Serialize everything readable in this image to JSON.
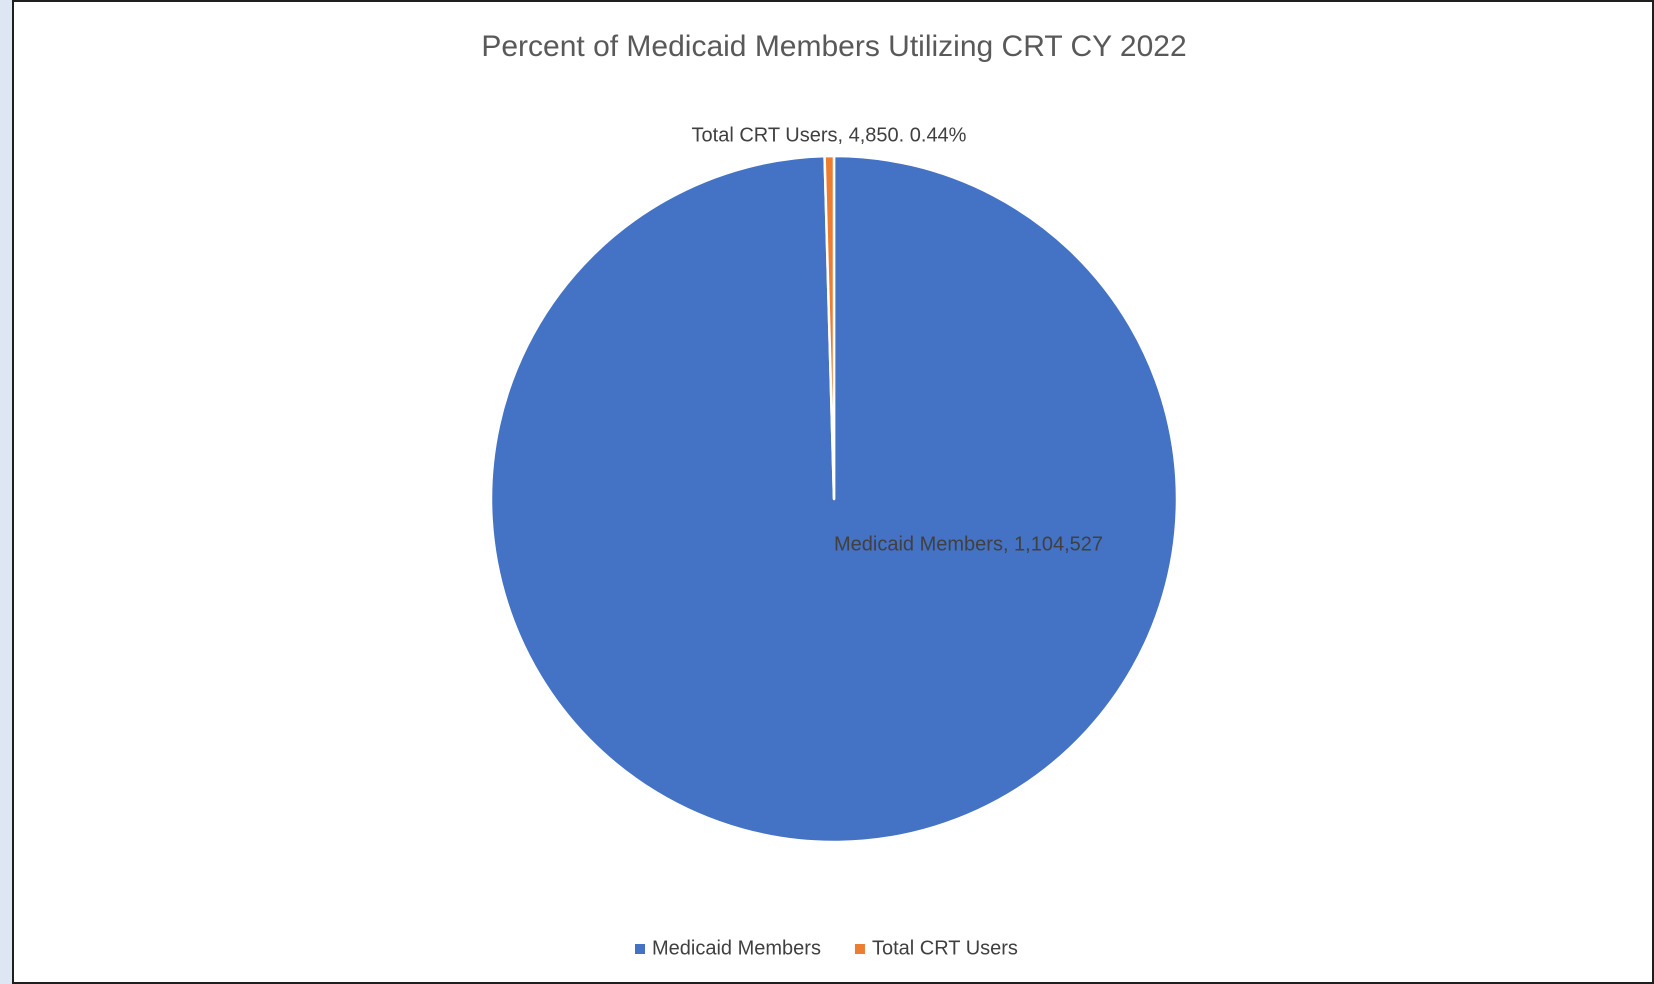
{
  "chart_data": {
    "type": "pie",
    "title": "Percent of Medicaid Members Utilizing CRT CY 2022",
    "categories": [
      "Medicaid Members",
      "Total CRT Users"
    ],
    "values": [
      1104527,
      4850
    ],
    "value_labels": [
      "Medicaid Members,  1,104,527",
      "Total CRT Users, 4,850.    0.44%"
    ],
    "colors": [
      "#4472c4",
      "#ed7d31"
    ],
    "legend": "bottom"
  }
}
